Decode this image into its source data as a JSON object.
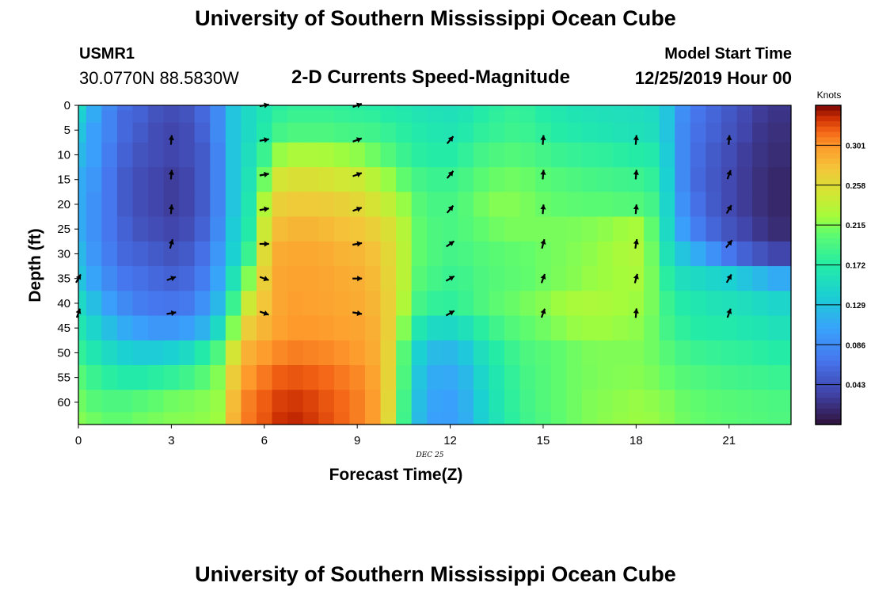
{
  "header": {
    "title": "University of Southern Mississippi Ocean Cube",
    "station_id": "USMR1",
    "coordinates": "30.0770N  88.5830W",
    "subtitle": "2-D Currents Speed-Magnitude",
    "model_start_label": "Model Start Time",
    "model_start_value": "12/25/2019 Hour 00"
  },
  "footer": {
    "title": "University of Southern Mississippi Ocean Cube"
  },
  "colors": {
    "low": "#2d1846",
    "high": "#7a0403"
  },
  "chart_data": {
    "type": "heatmap",
    "title": "2-D Currents Speed-Magnitude",
    "xlabel": "Forecast Time(Z)",
    "ylabel": "Depth (ft)",
    "date_label": "DEC 25",
    "x_ticks": [
      "0",
      "3",
      "6",
      "9",
      "12",
      "15",
      "18",
      "21"
    ],
    "x_tick_values": [
      0,
      3,
      6,
      9,
      12,
      15,
      18,
      21
    ],
    "y_ticks": [
      "0",
      "5",
      "10",
      "15",
      "20",
      "25",
      "30",
      "35",
      "40",
      "45",
      "50",
      "55",
      "60"
    ],
    "y_tick_values": [
      0,
      5,
      10,
      15,
      20,
      25,
      30,
      35,
      40,
      45,
      50,
      55,
      60
    ],
    "xlim": [
      0,
      23
    ],
    "ylim": [
      0,
      64.5
    ],
    "colorbar": {
      "label": "Knots",
      "ticks": [
        "0.301",
        "0.258",
        "0.215",
        "0.172",
        "0.129",
        "0.086",
        "0.043"
      ],
      "tick_values": [
        0.301,
        0.258,
        0.215,
        0.172,
        0.129,
        0.086,
        0.043
      ],
      "range": [
        0.0,
        0.344
      ]
    },
    "speed_knots": {
      "hours": [
        0,
        0.5,
        1,
        1.5,
        2,
        2.5,
        3,
        3.5,
        4,
        4.5,
        5,
        5.5,
        6,
        6.5,
        7,
        7.5,
        8,
        8.5,
        9,
        9.5,
        10,
        10.5,
        11,
        11.5,
        12,
        12.5,
        13,
        13.5,
        14,
        14.5,
        15,
        15.5,
        16,
        16.5,
        17,
        17.5,
        18,
        18.5,
        19,
        19.5,
        20,
        20.5,
        21,
        21.5,
        22,
        22.5
      ],
      "depths_ft": [
        0,
        2,
        5,
        10,
        15,
        20,
        25,
        30,
        35,
        40,
        45,
        50,
        55,
        60,
        64
      ],
      "values": [
        [
          0.15,
          0.11,
          0.085,
          0.065,
          0.055,
          0.045,
          0.04,
          0.045,
          0.06,
          0.085,
          0.13,
          0.15,
          0.165,
          0.175,
          0.18,
          0.18,
          0.18,
          0.178,
          0.175,
          0.172,
          0.168,
          0.165,
          0.16,
          0.158,
          0.157,
          0.16,
          0.17,
          0.175,
          0.18,
          0.178,
          0.17,
          0.165,
          0.16,
          0.158,
          0.157,
          0.155,
          0.153,
          0.15,
          0.13,
          0.09,
          0.07,
          0.06,
          0.05,
          0.04,
          0.03,
          0.025
        ],
        [
          0.14,
          0.11,
          0.08,
          0.06,
          0.055,
          0.045,
          0.04,
          0.045,
          0.06,
          0.085,
          0.13,
          0.15,
          0.165,
          0.18,
          0.185,
          0.185,
          0.185,
          0.182,
          0.18,
          0.178,
          0.172,
          0.168,
          0.163,
          0.16,
          0.158,
          0.162,
          0.172,
          0.178,
          0.182,
          0.18,
          0.172,
          0.167,
          0.162,
          0.16,
          0.158,
          0.157,
          0.155,
          0.152,
          0.13,
          0.088,
          0.068,
          0.058,
          0.048,
          0.038,
          0.028,
          0.023
        ],
        [
          0.13,
          0.1,
          0.08,
          0.06,
          0.05,
          0.04,
          0.035,
          0.04,
          0.055,
          0.085,
          0.13,
          0.15,
          0.17,
          0.19,
          0.195,
          0.195,
          0.195,
          0.192,
          0.19,
          0.188,
          0.182,
          0.175,
          0.168,
          0.165,
          0.163,
          0.168,
          0.178,
          0.182,
          0.186,
          0.184,
          0.178,
          0.172,
          0.168,
          0.165,
          0.162,
          0.16,
          0.158,
          0.155,
          0.13,
          0.085,
          0.065,
          0.055,
          0.045,
          0.035,
          0.025,
          0.02
        ],
        [
          0.12,
          0.1,
          0.075,
          0.055,
          0.045,
          0.04,
          0.035,
          0.04,
          0.05,
          0.08,
          0.13,
          0.155,
          0.185,
          0.22,
          0.228,
          0.228,
          0.226,
          0.222,
          0.218,
          0.21,
          0.198,
          0.185,
          0.175,
          0.172,
          0.172,
          0.18,
          0.19,
          0.195,
          0.198,
          0.195,
          0.19,
          0.185,
          0.182,
          0.18,
          0.178,
          0.175,
          0.172,
          0.168,
          0.135,
          0.085,
          0.062,
          0.05,
          0.04,
          0.03,
          0.022,
          0.018
        ],
        [
          0.11,
          0.095,
          0.07,
          0.05,
          0.04,
          0.035,
          0.03,
          0.035,
          0.05,
          0.08,
          0.13,
          0.16,
          0.21,
          0.25,
          0.255,
          0.255,
          0.252,
          0.248,
          0.245,
          0.235,
          0.22,
          0.205,
          0.19,
          0.185,
          0.185,
          0.192,
          0.202,
          0.208,
          0.21,
          0.208,
          0.202,
          0.198,
          0.195,
          0.192,
          0.19,
          0.188,
          0.186,
          0.18,
          0.14,
          0.085,
          0.06,
          0.048,
          0.038,
          0.028,
          0.02,
          0.015
        ],
        [
          0.11,
          0.09,
          0.07,
          0.05,
          0.04,
          0.035,
          0.03,
          0.035,
          0.05,
          0.08,
          0.13,
          0.165,
          0.23,
          0.268,
          0.272,
          0.272,
          0.27,
          0.266,
          0.262,
          0.252,
          0.238,
          0.22,
          0.2,
          0.192,
          0.192,
          0.2,
          0.21,
          0.215,
          0.215,
          0.212,
          0.208,
          0.205,
          0.203,
          0.202,
          0.202,
          0.2,
          0.198,
          0.19,
          0.145,
          0.09,
          0.065,
          0.05,
          0.038,
          0.028,
          0.02,
          0.015
        ],
        [
          0.11,
          0.09,
          0.07,
          0.055,
          0.045,
          0.04,
          0.035,
          0.04,
          0.055,
          0.085,
          0.135,
          0.17,
          0.245,
          0.28,
          0.285,
          0.285,
          0.282,
          0.278,
          0.275,
          0.268,
          0.255,
          0.232,
          0.205,
          0.195,
          0.193,
          0.198,
          0.205,
          0.21,
          0.212,
          0.212,
          0.212,
          0.212,
          0.213,
          0.215,
          0.218,
          0.222,
          0.225,
          0.205,
          0.15,
          0.1,
          0.075,
          0.058,
          0.045,
          0.035,
          0.025,
          0.018
        ],
        [
          0.12,
          0.095,
          0.075,
          0.06,
          0.055,
          0.05,
          0.045,
          0.05,
          0.065,
          0.095,
          0.14,
          0.185,
          0.258,
          0.29,
          0.292,
          0.292,
          0.29,
          0.286,
          0.284,
          0.278,
          0.262,
          0.235,
          0.205,
          0.195,
          0.19,
          0.193,
          0.198,
          0.202,
          0.205,
          0.207,
          0.21,
          0.212,
          0.215,
          0.218,
          0.222,
          0.226,
          0.23,
          0.21,
          0.16,
          0.13,
          0.11,
          0.09,
          0.07,
          0.055,
          0.045,
          0.035
        ],
        [
          0.13,
          0.105,
          0.085,
          0.07,
          0.065,
          0.06,
          0.055,
          0.06,
          0.075,
          0.105,
          0.16,
          0.215,
          0.268,
          0.293,
          0.295,
          0.295,
          0.293,
          0.29,
          0.288,
          0.282,
          0.265,
          0.235,
          0.2,
          0.19,
          0.185,
          0.188,
          0.195,
          0.2,
          0.203,
          0.206,
          0.21,
          0.213,
          0.216,
          0.22,
          0.222,
          0.224,
          0.226,
          0.212,
          0.175,
          0.155,
          0.15,
          0.145,
          0.14,
          0.13,
          0.12,
          0.11
        ],
        [
          0.15,
          0.125,
          0.1,
          0.085,
          0.075,
          0.07,
          0.068,
          0.072,
          0.09,
          0.12,
          0.185,
          0.245,
          0.275,
          0.293,
          0.297,
          0.296,
          0.294,
          0.292,
          0.29,
          0.285,
          0.268,
          0.23,
          0.19,
          0.18,
          0.178,
          0.185,
          0.195,
          0.203,
          0.208,
          0.212,
          0.216,
          0.222,
          0.226,
          0.228,
          0.226,
          0.224,
          0.222,
          0.212,
          0.185,
          0.17,
          0.165,
          0.16,
          0.158,
          0.155,
          0.15,
          0.145
        ],
        [
          0.165,
          0.145,
          0.125,
          0.11,
          0.1,
          0.095,
          0.095,
          0.1,
          0.115,
          0.15,
          0.215,
          0.27,
          0.285,
          0.296,
          0.3,
          0.3,
          0.298,
          0.296,
          0.294,
          0.288,
          0.268,
          0.215,
          0.165,
          0.15,
          0.148,
          0.158,
          0.175,
          0.188,
          0.198,
          0.205,
          0.21,
          0.215,
          0.22,
          0.222,
          0.222,
          0.22,
          0.218,
          0.21,
          0.19,
          0.178,
          0.172,
          0.17,
          0.168,
          0.165,
          0.162,
          0.158
        ],
        [
          0.18,
          0.165,
          0.15,
          0.14,
          0.135,
          0.135,
          0.14,
          0.15,
          0.17,
          0.195,
          0.25,
          0.288,
          0.298,
          0.305,
          0.308,
          0.307,
          0.305,
          0.302,
          0.298,
          0.29,
          0.265,
          0.2,
          0.14,
          0.122,
          0.12,
          0.132,
          0.155,
          0.172,
          0.185,
          0.195,
          0.2,
          0.205,
          0.21,
          0.213,
          0.214,
          0.214,
          0.214,
          0.21,
          0.2,
          0.19,
          0.185,
          0.182,
          0.18,
          0.178,
          0.175,
          0.172
        ],
        [
          0.2,
          0.185,
          0.175,
          0.17,
          0.17,
          0.175,
          0.18,
          0.188,
          0.2,
          0.215,
          0.27,
          0.3,
          0.31,
          0.318,
          0.32,
          0.318,
          0.315,
          0.31,
          0.305,
          0.295,
          0.265,
          0.195,
          0.13,
          0.11,
          0.108,
          0.12,
          0.145,
          0.165,
          0.18,
          0.192,
          0.198,
          0.205,
          0.21,
          0.212,
          0.214,
          0.215,
          0.216,
          0.213,
          0.207,
          0.2,
          0.196,
          0.193,
          0.19,
          0.188,
          0.186,
          0.184
        ],
        [
          0.21,
          0.2,
          0.195,
          0.195,
          0.2,
          0.205,
          0.21,
          0.212,
          0.215,
          0.22,
          0.28,
          0.308,
          0.318,
          0.326,
          0.328,
          0.325,
          0.32,
          0.315,
          0.308,
          0.298,
          0.262,
          0.19,
          0.125,
          0.105,
          0.102,
          0.115,
          0.14,
          0.162,
          0.178,
          0.19,
          0.198,
          0.205,
          0.21,
          0.214,
          0.216,
          0.218,
          0.22,
          0.218,
          0.214,
          0.208,
          0.205,
          0.202,
          0.2,
          0.198,
          0.196,
          0.194
        ],
        [
          0.215,
          0.21,
          0.205,
          0.205,
          0.21,
          0.212,
          0.215,
          0.216,
          0.218,
          0.222,
          0.285,
          0.31,
          0.32,
          0.33,
          0.332,
          0.328,
          0.322,
          0.316,
          0.308,
          0.298,
          0.26,
          0.188,
          0.122,
          0.102,
          0.1,
          0.112,
          0.138,
          0.16,
          0.176,
          0.188,
          0.196,
          0.204,
          0.21,
          0.214,
          0.217,
          0.219,
          0.221,
          0.22,
          0.216,
          0.21,
          0.207,
          0.204,
          0.202,
          0.2,
          0.198,
          0.196
        ]
      ]
    },
    "current_vectors": {
      "hours": [
        0,
        3,
        6,
        9,
        12,
        15,
        18,
        21
      ],
      "depths_ft": [
        0,
        7,
        14,
        21,
        28,
        35,
        42
      ],
      "direction_deg": [
        [
          null,
          null,
          80,
          70,
          null,
          null,
          null,
          null
        ],
        [
          null,
          5,
          80,
          70,
          40,
          5,
          5,
          5
        ],
        [
          null,
          5,
          80,
          70,
          40,
          5,
          5,
          20
        ],
        [
          null,
          5,
          80,
          70,
          40,
          5,
          5,
          30
        ],
        [
          null,
          15,
          90,
          80,
          55,
          15,
          10,
          40
        ],
        [
          30,
          70,
          110,
          90,
          60,
          20,
          15,
          30
        ],
        [
          20,
          80,
          110,
          100,
          60,
          20,
          5,
          20
        ]
      ]
    }
  }
}
